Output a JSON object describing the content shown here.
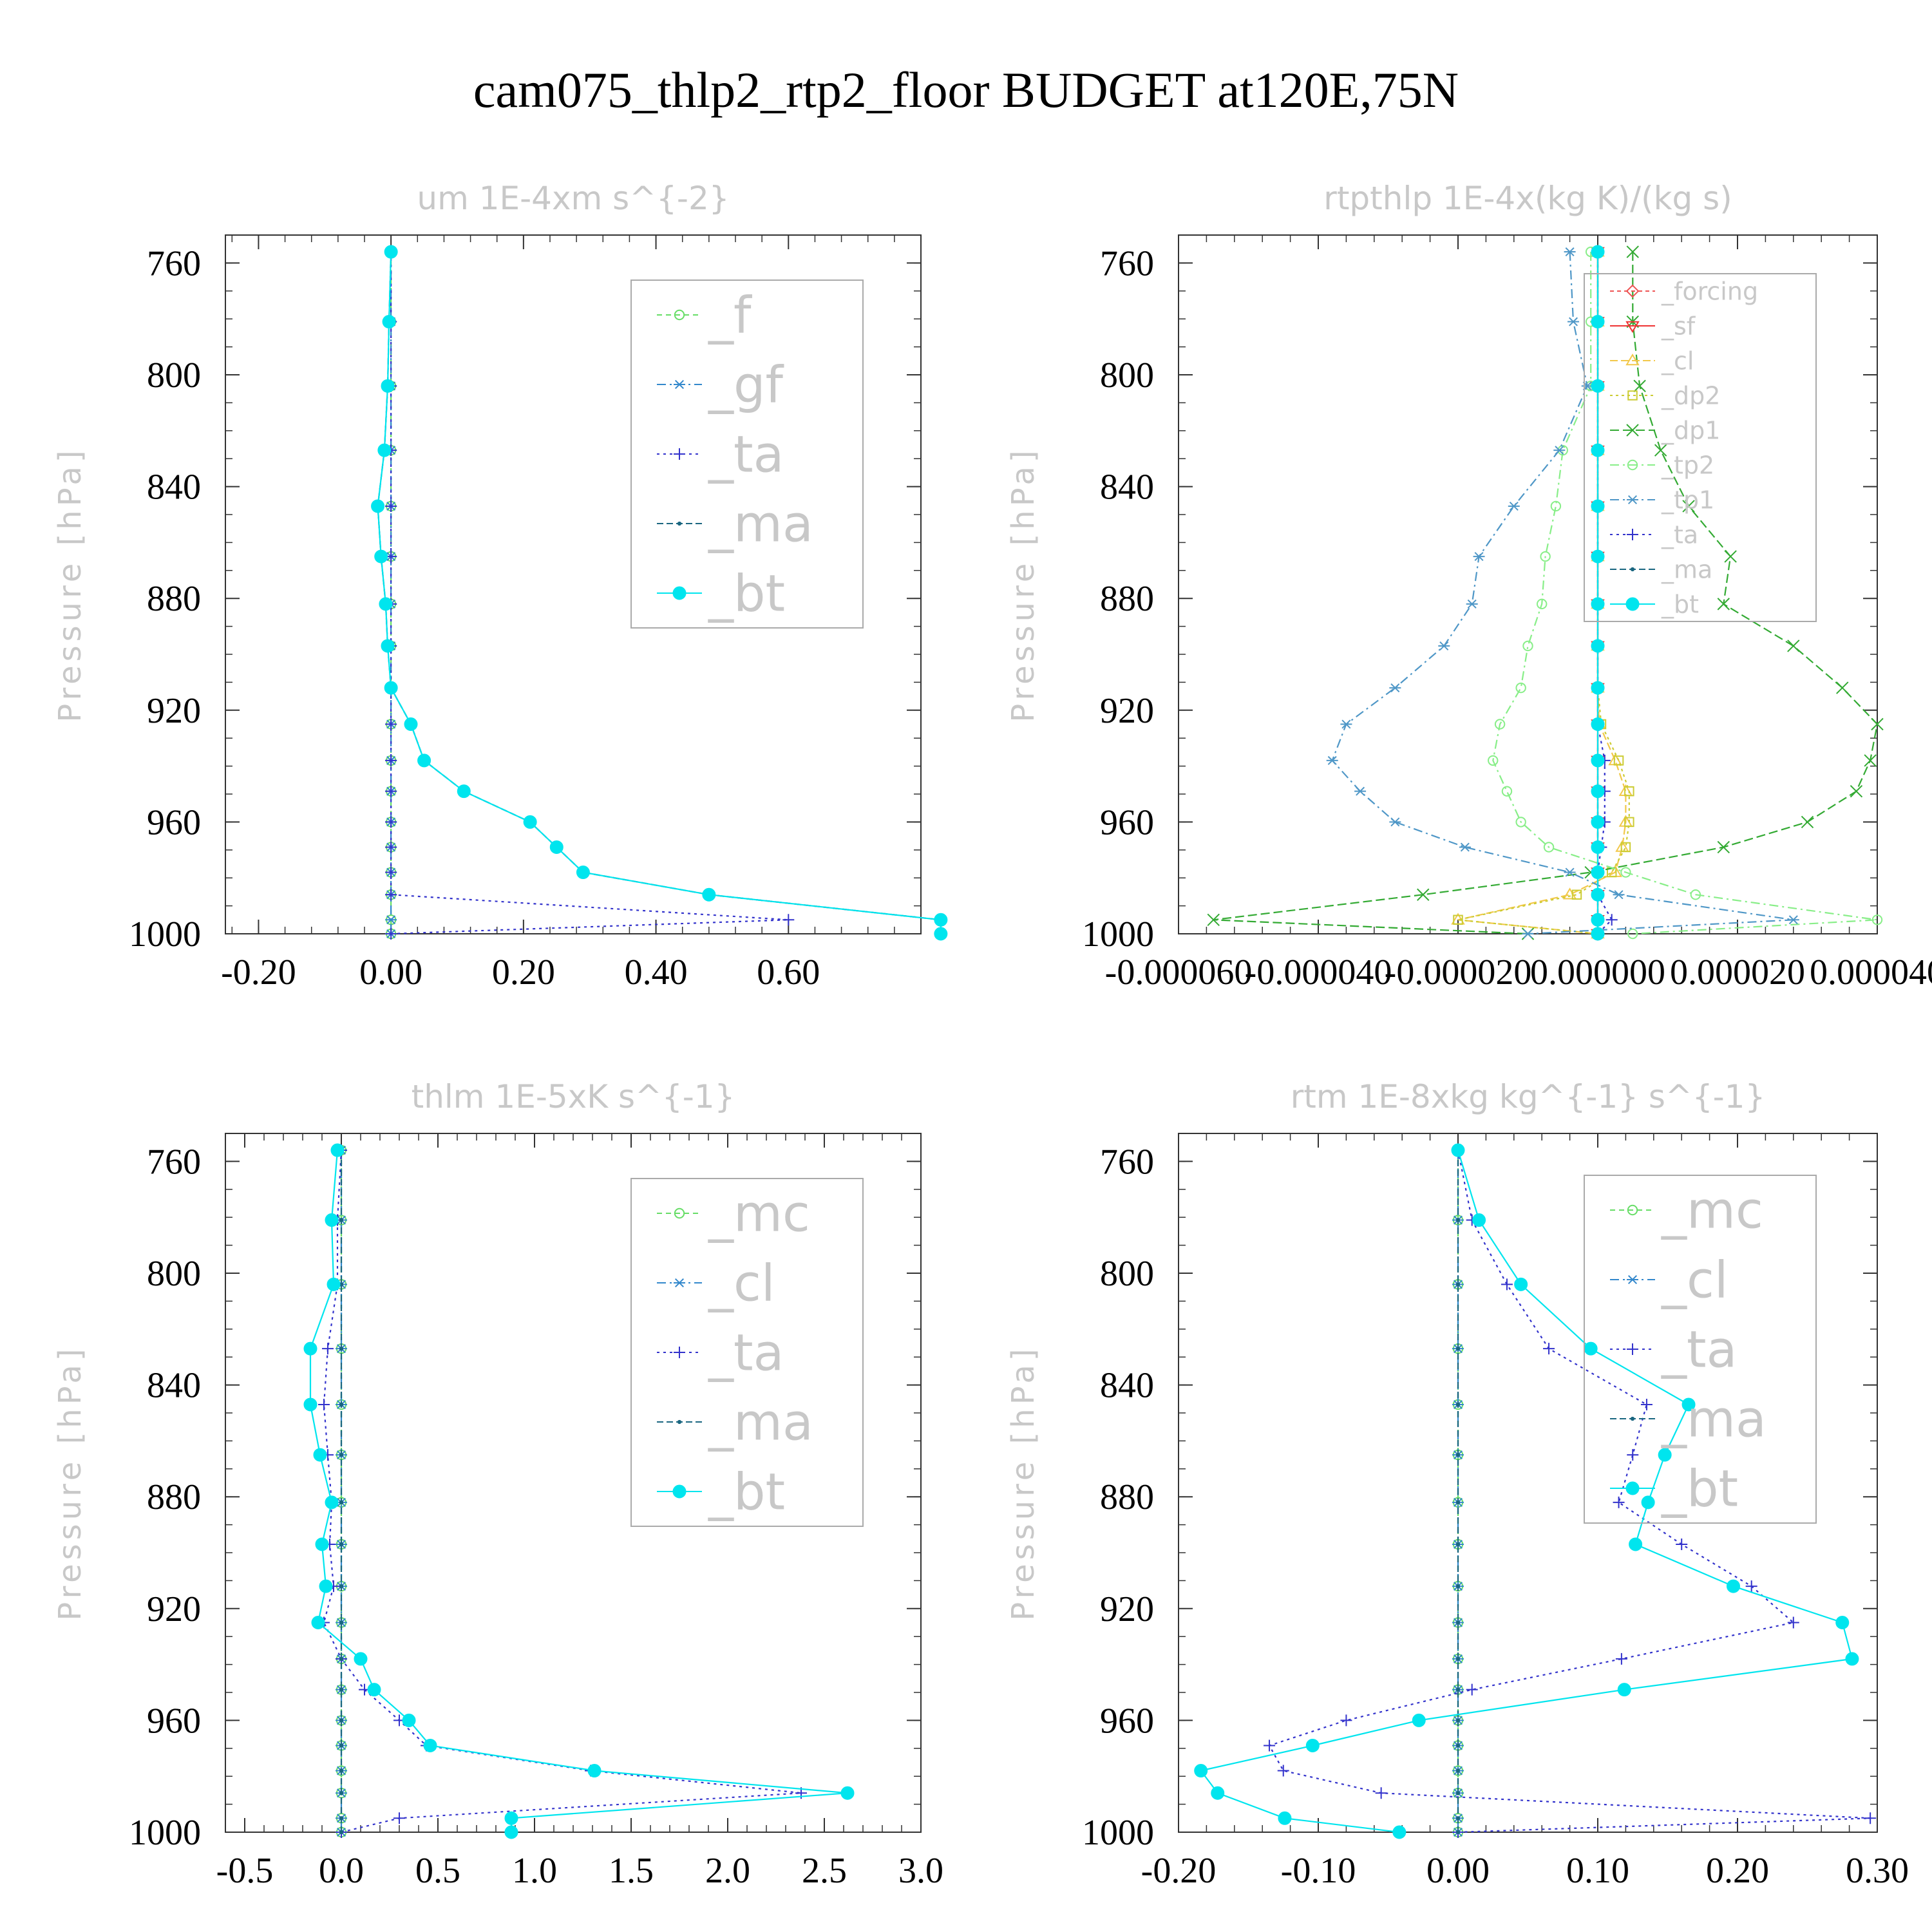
{
  "title": "cam075_thlp2_rtp2_floor  BUDGET at120E,75N",
  "chart_data": [
    {
      "id": "um",
      "type": "line",
      "title": "um   1E-4xm s^{-2}",
      "ylabel": "Pressure [hPa]",
      "xlim": [
        -0.25,
        0.8
      ],
      "ylim": [
        1000,
        750
      ],
      "xticks": [
        -0.2,
        0.0,
        0.2,
        0.4,
        0.6
      ],
      "xtick_labels": [
        "-0.20",
        "0.00",
        "0.20",
        "0.40",
        "0.60"
      ],
      "yticks": [
        760,
        800,
        840,
        880,
        920,
        960,
        1000
      ],
      "ytick_labels": [
        "760",
        "800",
        "840",
        "880",
        "920",
        "960",
        "1000"
      ],
      "legend_font": 78,
      "levels": [
        756,
        781,
        804,
        827,
        847,
        865,
        882,
        897,
        912,
        925,
        938,
        949,
        960,
        969,
        978,
        986,
        995,
        1000
      ],
      "series": [
        {
          "name": "_f",
          "color": "#66dd66",
          "marker": "circle",
          "dash": "8 6",
          "values": [
            0,
            0,
            0,
            0,
            0,
            0,
            0,
            0,
            0,
            0,
            0,
            0,
            0,
            0,
            0,
            0,
            0,
            0
          ]
        },
        {
          "name": "_gf",
          "color": "#3388cc",
          "marker": "asterisk",
          "dash": "14 6 3 6",
          "values": [
            0,
            0,
            0,
            0,
            0,
            0,
            0,
            0,
            0,
            0,
            0,
            0,
            0,
            0,
            0,
            0,
            0,
            0
          ]
        },
        {
          "name": "_ta",
          "color": "#3333cc",
          "marker": "plus",
          "dash": "4 6",
          "values": [
            0,
            0,
            0,
            0,
            0,
            0,
            0,
            0,
            0,
            0,
            0,
            0,
            0,
            0,
            0,
            0,
            0.6,
            0
          ]
        },
        {
          "name": "_ma",
          "color": "#1a6680",
          "marker": "dot",
          "dash": "10 5",
          "values": [
            0.0,
            -0.003,
            -0.005,
            -0.01,
            -0.02,
            -0.015,
            -0.008,
            -0.005,
            0.0,
            0.03,
            0.05,
            0.11,
            0.21,
            0.25,
            0.29,
            0.48,
            0.83,
            0.83
          ]
        },
        {
          "name": "_bt",
          "color": "#00e5ee",
          "marker": "filled",
          "dash": "",
          "values": [
            0.0,
            -0.003,
            -0.005,
            -0.01,
            -0.02,
            -0.015,
            -0.008,
            -0.005,
            0.0,
            0.03,
            0.05,
            0.11,
            0.21,
            0.25,
            0.29,
            0.48,
            0.83,
            0.83
          ]
        }
      ]
    },
    {
      "id": "rtpthlp",
      "type": "line",
      "title": "rtpthlp   1E-4x(kg K)/(kg s)",
      "ylabel": "Pressure [hPa]",
      "xlim": [
        -6e-05,
        4e-05
      ],
      "ylim": [
        1000,
        750
      ],
      "xticks": [
        -6e-05,
        -4e-05,
        -2e-05,
        0.0,
        2e-05,
        4e-05
      ],
      "xtick_labels": [
        "-0.000060",
        "-0.000040",
        "-0.000020",
        "0.000000",
        "0.000020",
        "0.000040"
      ],
      "yticks": [
        760,
        800,
        840,
        880,
        920,
        960,
        1000
      ],
      "ytick_labels": [
        "760",
        "800",
        "840",
        "880",
        "920",
        "960",
        "1000"
      ],
      "legend_font": 38,
      "levels": [
        756,
        781,
        804,
        827,
        847,
        865,
        882,
        897,
        912,
        925,
        938,
        949,
        960,
        969,
        978,
        986,
        995,
        1000
      ],
      "series": [
        {
          "name": "_forcing",
          "color": "#ee5555",
          "marker": "diamond",
          "dash": "6 5",
          "values": [
            0,
            0,
            0,
            0,
            0,
            0,
            0,
            0,
            0,
            0,
            0,
            0,
            0,
            0,
            0,
            0,
            0,
            0
          ]
        },
        {
          "name": "_sf",
          "color": "#ee3333",
          "marker": "triangle-down",
          "dash": "",
          "values": [
            0,
            0,
            0,
            0,
            0,
            0,
            0,
            0,
            0,
            0,
            0,
            0,
            0,
            0,
            0,
            0,
            0,
            0
          ]
        },
        {
          "name": "_cl",
          "color": "#f2c84a",
          "marker": "triangle-up",
          "dash": "12 5",
          "values": [
            0,
            0,
            0,
            0,
            0,
            0,
            0,
            0,
            0,
            2e-07,
            2.5e-06,
            4e-06,
            4e-06,
            3.5e-06,
            2.5e-06,
            -4e-06,
            -2e-05,
            0
          ]
        },
        {
          "name": "_dp2",
          "color": "#cccc33",
          "marker": "square",
          "dash": "4 5",
          "values": [
            0,
            0,
            0,
            0,
            0,
            0,
            0,
            0,
            0,
            5e-07,
            3e-06,
            4.5e-06,
            4.5e-06,
            4e-06,
            2e-06,
            -3e-06,
            -2e-05,
            0
          ]
        },
        {
          "name": "_dp1",
          "color": "#33aa33",
          "marker": "x",
          "dash": "14 6",
          "values": [
            5e-06,
            5e-06,
            6e-06,
            9e-06,
            1.3e-05,
            1.9e-05,
            1.8e-05,
            2.8e-05,
            3.5e-05,
            4e-05,
            3.9e-05,
            3.7e-05,
            3e-05,
            1.8e-05,
            -1e-06,
            -2.5e-05,
            -5.5e-05,
            -1e-05
          ]
        },
        {
          "name": "_tp2",
          "color": "#88ee88",
          "marker": "circle",
          "dash": "14 6 3 6",
          "values": [
            -1e-06,
            -1e-06,
            -1e-06,
            -5e-06,
            -6e-06,
            -7.5e-06,
            -8e-06,
            -1e-05,
            -1.1e-05,
            -1.4e-05,
            -1.5e-05,
            -1.3e-05,
            -1.1e-05,
            -7e-06,
            4e-06,
            1.4e-05,
            4e-05,
            5e-06
          ]
        },
        {
          "name": "_tp1",
          "color": "#4f97c7",
          "marker": "asterisk",
          "dash": "14 6 3 6",
          "values": [
            -4e-06,
            -3.5e-06,
            -1.5e-06,
            -5.5e-06,
            -1.2e-05,
            -1.7e-05,
            -1.8e-05,
            -2.2e-05,
            -2.9e-05,
            -3.6e-05,
            -3.8e-05,
            -3.4e-05,
            -2.9e-05,
            -1.9e-05,
            -4e-06,
            3e-06,
            2.8e-05,
            -1e-05
          ]
        },
        {
          "name": "_ta",
          "color": "#3333cc",
          "marker": "plus",
          "dash": "4 6",
          "values": [
            0,
            0,
            0,
            0,
            0,
            0,
            0,
            0,
            0,
            0,
            1e-06,
            1e-06,
            1e-06,
            5e-07,
            0,
            0,
            2e-06,
            0
          ]
        },
        {
          "name": "_ma",
          "color": "#1a6680",
          "marker": "dot",
          "dash": "10 5",
          "values": [
            0,
            0,
            0,
            0,
            0,
            0,
            0,
            0,
            0,
            0,
            0,
            0,
            0,
            0,
            0,
            0,
            0,
            0
          ]
        },
        {
          "name": "_bt",
          "color": "#00e5ee",
          "marker": "filled",
          "dash": "",
          "values": [
            0,
            0,
            0,
            0,
            0,
            0,
            0,
            0,
            0,
            0,
            0,
            0,
            0,
            0,
            0,
            0,
            0,
            0
          ]
        }
      ]
    },
    {
      "id": "thlm",
      "type": "line",
      "title": "thlm   1E-5xK s^{-1}",
      "ylabel": "Pressure [hPa]",
      "xlim": [
        -0.6,
        3.0
      ],
      "ylim": [
        1000,
        750
      ],
      "xticks": [
        -0.5,
        0.0,
        0.5,
        1.0,
        1.5,
        2.0,
        2.5,
        3.0
      ],
      "xtick_labels": [
        "-0.5",
        "0.0",
        "0.5",
        "1.0",
        "1.5",
        "2.0",
        "2.5",
        "3.0"
      ],
      "yticks": [
        760,
        800,
        840,
        880,
        920,
        960,
        1000
      ],
      "ytick_labels": [
        "760",
        "800",
        "840",
        "880",
        "920",
        "960",
        "1000"
      ],
      "legend_font": 78,
      "levels": [
        756,
        781,
        804,
        827,
        847,
        865,
        882,
        897,
        912,
        925,
        938,
        949,
        960,
        969,
        978,
        986,
        995,
        1000
      ],
      "series": [
        {
          "name": "_mc",
          "color": "#66dd66",
          "marker": "circle",
          "dash": "8 6",
          "values": [
            0,
            0,
            0,
            0,
            0,
            0,
            0,
            0,
            0,
            0,
            0,
            0,
            0,
            0,
            0,
            0,
            0,
            0
          ]
        },
        {
          "name": "_cl",
          "color": "#3388cc",
          "marker": "asterisk",
          "dash": "14 6 3 6",
          "values": [
            0,
            0,
            0,
            0,
            0,
            0,
            0,
            0,
            0,
            0,
            0,
            0,
            0,
            0,
            0,
            0,
            0,
            0
          ]
        },
        {
          "name": "_ta",
          "color": "#3333cc",
          "marker": "plus",
          "dash": "4 6",
          "values": [
            0.0,
            -0.02,
            -0.02,
            -0.07,
            -0.09,
            -0.07,
            -0.05,
            -0.06,
            -0.04,
            -0.09,
            0.0,
            0.12,
            0.3,
            0.44,
            1.29,
            2.38,
            0.3,
            0.0
          ]
        },
        {
          "name": "_ma",
          "color": "#1a6680",
          "marker": "dot",
          "dash": "10 5",
          "values": [
            0,
            0,
            0,
            0,
            0,
            0,
            0,
            0,
            0,
            0,
            0,
            0,
            0,
            0,
            0,
            0,
            0,
            0
          ]
        },
        {
          "name": "_bt",
          "color": "#00e5ee",
          "marker": "filled",
          "dash": "",
          "values": [
            -0.02,
            -0.05,
            -0.04,
            -0.16,
            -0.16,
            -0.11,
            -0.05,
            -0.1,
            -0.08,
            -0.12,
            0.1,
            0.17,
            0.35,
            0.46,
            1.31,
            2.62,
            0.88,
            0.88
          ]
        }
      ]
    },
    {
      "id": "rtm",
      "type": "line",
      "title": "rtm   1E-8xkg kg^{-1} s^{-1}",
      "ylabel": "Pressure [hPa]",
      "xlim": [
        -0.2,
        0.3
      ],
      "ylim": [
        1000,
        750
      ],
      "xticks": [
        -0.2,
        -0.1,
        0.0,
        0.1,
        0.2,
        0.3
      ],
      "xtick_labels": [
        "-0.20",
        "-0.10",
        "0.00",
        "0.10",
        "0.20",
        "0.30"
      ],
      "yticks": [
        760,
        800,
        840,
        880,
        920,
        960,
        1000
      ],
      "ytick_labels": [
        "760",
        "800",
        "840",
        "880",
        "920",
        "960",
        "1000"
      ],
      "legend_font": 78,
      "levels": [
        756,
        781,
        804,
        827,
        847,
        865,
        882,
        897,
        912,
        925,
        938,
        949,
        960,
        969,
        978,
        986,
        995,
        1000
      ],
      "series": [
        {
          "name": "_mc",
          "color": "#66dd66",
          "marker": "circle",
          "dash": "8 6",
          "values": [
            0,
            0,
            0,
            0,
            0,
            0,
            0,
            0,
            0,
            0,
            0,
            0,
            0,
            0,
            0,
            0,
            0,
            0
          ]
        },
        {
          "name": "_cl",
          "color": "#3388cc",
          "marker": "asterisk",
          "dash": "14 6 3 6",
          "values": [
            0,
            0,
            0,
            0,
            0,
            0,
            0,
            0,
            0,
            0,
            0,
            0,
            0,
            0,
            0,
            0,
            0,
            0
          ]
        },
        {
          "name": "_ta",
          "color": "#3333cc",
          "marker": "plus",
          "dash": "4 6",
          "values": [
            0.0,
            0.01,
            0.035,
            0.065,
            0.135,
            0.125,
            0.115,
            0.16,
            0.21,
            0.24,
            0.117,
            0.01,
            -0.08,
            -0.135,
            -0.125,
            -0.055,
            0.295,
            0.0
          ]
        },
        {
          "name": "_ma",
          "color": "#1a6680",
          "marker": "dot",
          "dash": "10 5",
          "values": [
            0,
            0,
            0,
            0,
            0,
            0,
            0,
            0,
            0,
            0,
            0,
            0,
            0,
            0,
            0,
            0,
            0,
            0
          ]
        },
        {
          "name": "_bt",
          "color": "#00e5ee",
          "marker": "filled",
          "dash": "",
          "values": [
            0.0,
            0.015,
            0.045,
            0.095,
            0.165,
            0.148,
            0.136,
            0.127,
            0.197,
            0.275,
            0.282,
            0.119,
            -0.028,
            -0.104,
            -0.184,
            -0.172,
            -0.124,
            -0.042
          ]
        }
      ]
    }
  ]
}
